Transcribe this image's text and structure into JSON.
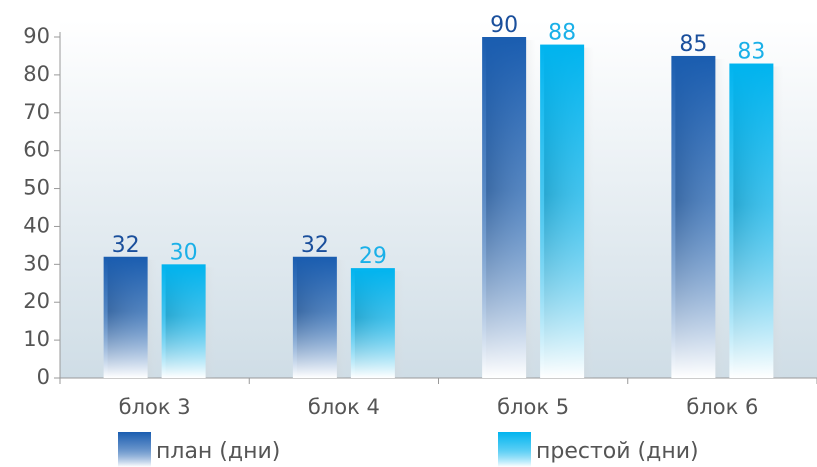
{
  "chart_data": {
    "type": "bar",
    "categories": [
      "блок 3",
      "блок 4",
      "блок 5",
      "блок 6"
    ],
    "series": [
      {
        "name": "план (дни)",
        "color": "#1a5db0",
        "values": [
          32,
          32,
          90,
          85
        ]
      },
      {
        "name": "престой (дни)",
        "color": "#00b4ef",
        "values": [
          30,
          29,
          88,
          83
        ]
      }
    ],
    "ylim": [
      0,
      90
    ],
    "yticks": [
      0,
      10,
      20,
      30,
      40,
      50,
      60,
      70,
      80,
      90
    ]
  }
}
